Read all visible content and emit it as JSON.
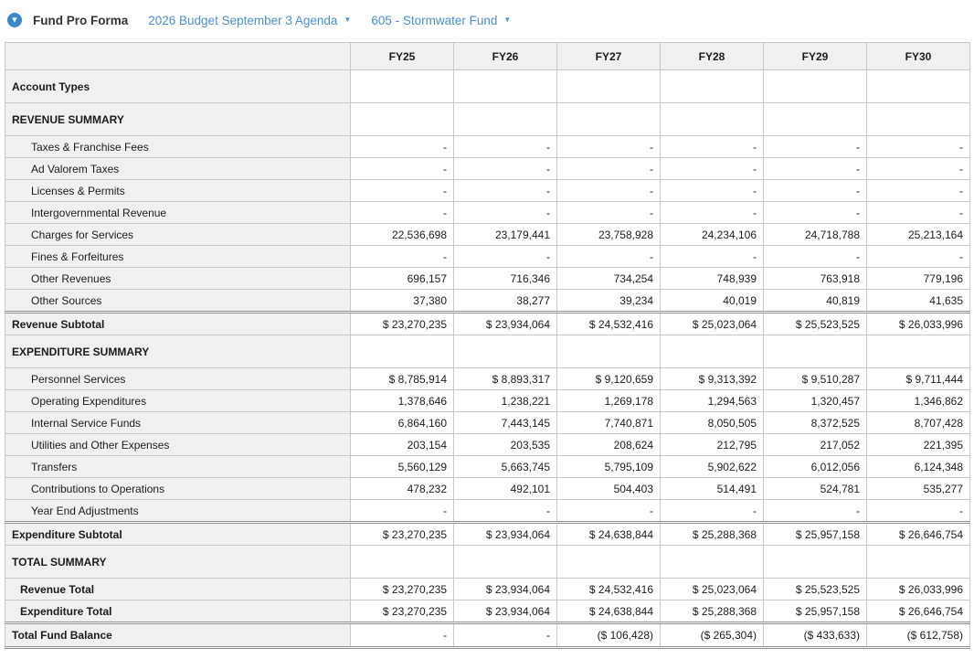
{
  "header": {
    "title": "Fund Pro Forma",
    "collapse_icon": "chevron-down-circle-icon",
    "dropdowns": [
      {
        "label": "2026 Budget September 3 Agenda",
        "caret": "▼"
      },
      {
        "label": "605 - Stormwater Fund",
        "caret": "▼"
      }
    ],
    "accent_blue": "#4a90d0",
    "icon_blue": "#3d88c9"
  },
  "table": {
    "header_bg": "#f0f0f0",
    "border_color": "#c9c9c9",
    "columns": [
      "",
      "FY25",
      "FY26",
      "FY27",
      "FY28",
      "FY29",
      "FY30"
    ],
    "rows": [
      {
        "label": "Account Types",
        "style": "section",
        "values": [
          "",
          "",
          "",
          "",
          "",
          ""
        ]
      },
      {
        "label": "REVENUE SUMMARY",
        "style": "section",
        "values": [
          "",
          "",
          "",
          "",
          "",
          ""
        ]
      },
      {
        "label": "Taxes & Franchise Fees",
        "style": "detail",
        "values": [
          "-",
          "-",
          "-",
          "-",
          "-",
          "-"
        ]
      },
      {
        "label": "Ad Valorem Taxes",
        "style": "detail",
        "values": [
          "-",
          "-",
          "-",
          "-",
          "-",
          "-"
        ]
      },
      {
        "label": "Licenses & Permits",
        "style": "detail",
        "values": [
          "-",
          "-",
          "-",
          "-",
          "-",
          "-"
        ]
      },
      {
        "label": "Intergovernmental Revenue",
        "style": "detail",
        "values": [
          "-",
          "-",
          "-",
          "-",
          "-",
          "-"
        ]
      },
      {
        "label": "Charges for Services",
        "style": "detail",
        "values": [
          "22,536,698",
          "23,179,441",
          "23,758,928",
          "24,234,106",
          "24,718,788",
          "25,213,164"
        ]
      },
      {
        "label": "Fines & Forfeitures",
        "style": "detail",
        "values": [
          "-",
          "-",
          "-",
          "-",
          "-",
          "-"
        ]
      },
      {
        "label": "Other Revenues",
        "style": "detail",
        "values": [
          "696,157",
          "716,346",
          "734,254",
          "748,939",
          "763,918",
          "779,196"
        ]
      },
      {
        "label": "Other Sources",
        "style": "detail",
        "values": [
          "37,380",
          "38,277",
          "39,234",
          "40,019",
          "40,819",
          "41,635"
        ]
      },
      {
        "label": "Revenue Subtotal",
        "style": "subtotal",
        "values": [
          "$ 23,270,235",
          "$ 23,934,064",
          "$ 24,532,416",
          "$ 25,023,064",
          "$ 25,523,525",
          "$ 26,033,996"
        ]
      },
      {
        "label": "EXPENDITURE SUMMARY",
        "style": "section",
        "values": [
          "",
          "",
          "",
          "",
          "",
          ""
        ]
      },
      {
        "label": "Personnel Services",
        "style": "detail",
        "values": [
          "$ 8,785,914",
          "$ 8,893,317",
          "$ 9,120,659",
          "$ 9,313,392",
          "$ 9,510,287",
          "$ 9,711,444"
        ]
      },
      {
        "label": "Operating Expenditures",
        "style": "detail",
        "values": [
          "1,378,646",
          "1,238,221",
          "1,269,178",
          "1,294,563",
          "1,320,457",
          "1,346,862"
        ]
      },
      {
        "label": "Internal Service Funds",
        "style": "detail",
        "values": [
          "6,864,160",
          "7,443,145",
          "7,740,871",
          "8,050,505",
          "8,372,525",
          "8,707,428"
        ]
      },
      {
        "label": "Utilities and Other Expenses",
        "style": "detail",
        "values": [
          "203,154",
          "203,535",
          "208,624",
          "212,795",
          "217,052",
          "221,395"
        ]
      },
      {
        "label": "Transfers",
        "style": "detail",
        "values": [
          "5,560,129",
          "5,663,745",
          "5,795,109",
          "5,902,622",
          "6,012,056",
          "6,124,348"
        ]
      },
      {
        "label": "Contributions to Operations",
        "style": "detail",
        "values": [
          "478,232",
          "492,101",
          "504,403",
          "514,491",
          "524,781",
          "535,277"
        ]
      },
      {
        "label": "Year End Adjustments",
        "style": "detail",
        "values": [
          "-",
          "-",
          "-",
          "-",
          "-",
          "-"
        ]
      },
      {
        "label": "Expenditure Subtotal",
        "style": "subtotal",
        "values": [
          "$ 23,270,235",
          "$ 23,934,064",
          "$ 24,638,844",
          "$ 25,288,368",
          "$ 25,957,158",
          "$ 26,646,754"
        ]
      },
      {
        "label": "TOTAL SUMMARY",
        "style": "section",
        "values": [
          "",
          "",
          "",
          "",
          "",
          ""
        ]
      },
      {
        "label": "Revenue Total",
        "style": "total",
        "values": [
          "$ 23,270,235",
          "$ 23,934,064",
          "$ 24,532,416",
          "$ 25,023,064",
          "$ 25,523,525",
          "$ 26,033,996"
        ]
      },
      {
        "label": "Expenditure Total",
        "style": "total",
        "values": [
          "$ 23,270,235",
          "$ 23,934,064",
          "$ 24,638,844",
          "$ 25,288,368",
          "$ 25,957,158",
          "$ 26,646,754"
        ]
      },
      {
        "label": "Total Fund Balance",
        "style": "grand",
        "values": [
          "-",
          "-",
          "($ 106,428)",
          "($ 265,304)",
          "($ 433,633)",
          "($ 612,758)"
        ]
      }
    ]
  }
}
